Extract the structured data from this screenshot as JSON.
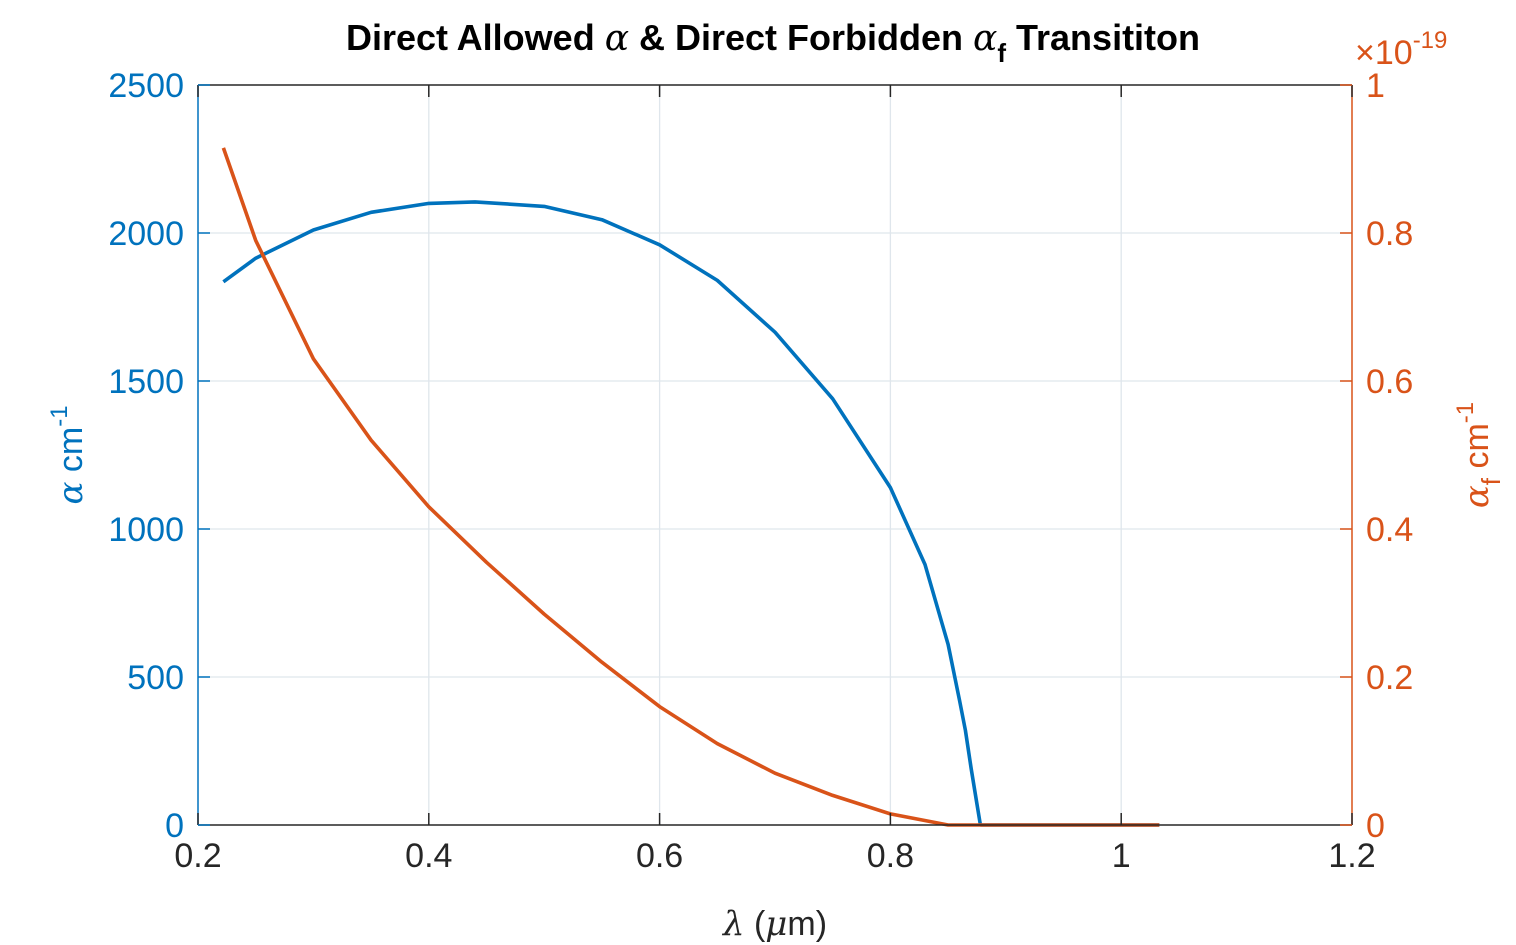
{
  "chart_data": {
    "type": "line",
    "title": {
      "part1": "Direct Allowed ",
      "alpha": "α",
      "part2": " & Direct Forbidden ",
      "alpha_f": "α",
      "sub": "f",
      "part3": " Transititon"
    },
    "xlabel": {
      "lambda": "λ",
      "rest1": " (",
      "mu": "μ",
      "rest2": "m)"
    },
    "ylabel_left": {
      "alpha": "α",
      "unit": "  cm",
      "exp": "-1"
    },
    "ylabel_right": {
      "alpha": "α",
      "sub": "f",
      "unit": "  cm",
      "exp": "-1"
    },
    "xlim": [
      0.2,
      1.2
    ],
    "ylim_left": [
      0,
      2500
    ],
    "ylim_right": [
      0,
      1
    ],
    "x_ticks": [
      0.2,
      0.4,
      0.6,
      0.8,
      1.0,
      1.2
    ],
    "x_tick_labels": [
      "0.2",
      "0.4",
      "0.6",
      "0.8",
      "1",
      "1.2"
    ],
    "y_left_ticks": [
      0,
      500,
      1000,
      1500,
      2000,
      2500
    ],
    "y_left_tick_labels": [
      "0",
      "500",
      "1000",
      "1500",
      "2000",
      "2500"
    ],
    "y_right_ticks": [
      0,
      0.2,
      0.4,
      0.6,
      0.8,
      1
    ],
    "y_right_tick_labels": [
      "0",
      "0.2",
      "0.4",
      "0.6",
      "0.8",
      "1"
    ],
    "exponent_label": {
      "times": "×",
      "base": "10",
      "exp": "-19"
    },
    "grid": true,
    "colors": {
      "left": "#0072BD",
      "right": "#D95319",
      "axis": "#262626",
      "grid": "#dfe6ec"
    },
    "series": [
      {
        "axis": "left",
        "x": [
          0.222,
          0.25,
          0.3,
          0.35,
          0.4,
          0.44,
          0.5,
          0.55,
          0.6,
          0.65,
          0.7,
          0.75,
          0.8,
          0.83,
          0.85,
          0.86,
          0.865,
          0.87,
          0.875,
          0.878
        ],
        "y": [
          1835,
          1915,
          2010,
          2070,
          2100,
          2105,
          2090,
          2045,
          1960,
          1840,
          1665,
          1440,
          1140,
          880,
          610,
          420,
          320,
          190,
          70,
          0
        ]
      },
      {
        "axis": "left",
        "x": [
          0.878,
          1.033
        ],
        "y": [
          0,
          0
        ]
      },
      {
        "axis": "right",
        "x": [
          0.222,
          0.25,
          0.3,
          0.35,
          0.4,
          0.45,
          0.5,
          0.55,
          0.6,
          0.65,
          0.7,
          0.75,
          0.8,
          0.85,
          0.87,
          0.9,
          1.0,
          1.033
        ],
        "y": [
          0.915,
          0.79,
          0.63,
          0.52,
          0.43,
          0.355,
          0.285,
          0.22,
          0.16,
          0.11,
          0.07,
          0.04,
          0.015,
          0.0,
          0.0,
          0.0,
          0.0,
          0.0
        ]
      }
    ]
  }
}
